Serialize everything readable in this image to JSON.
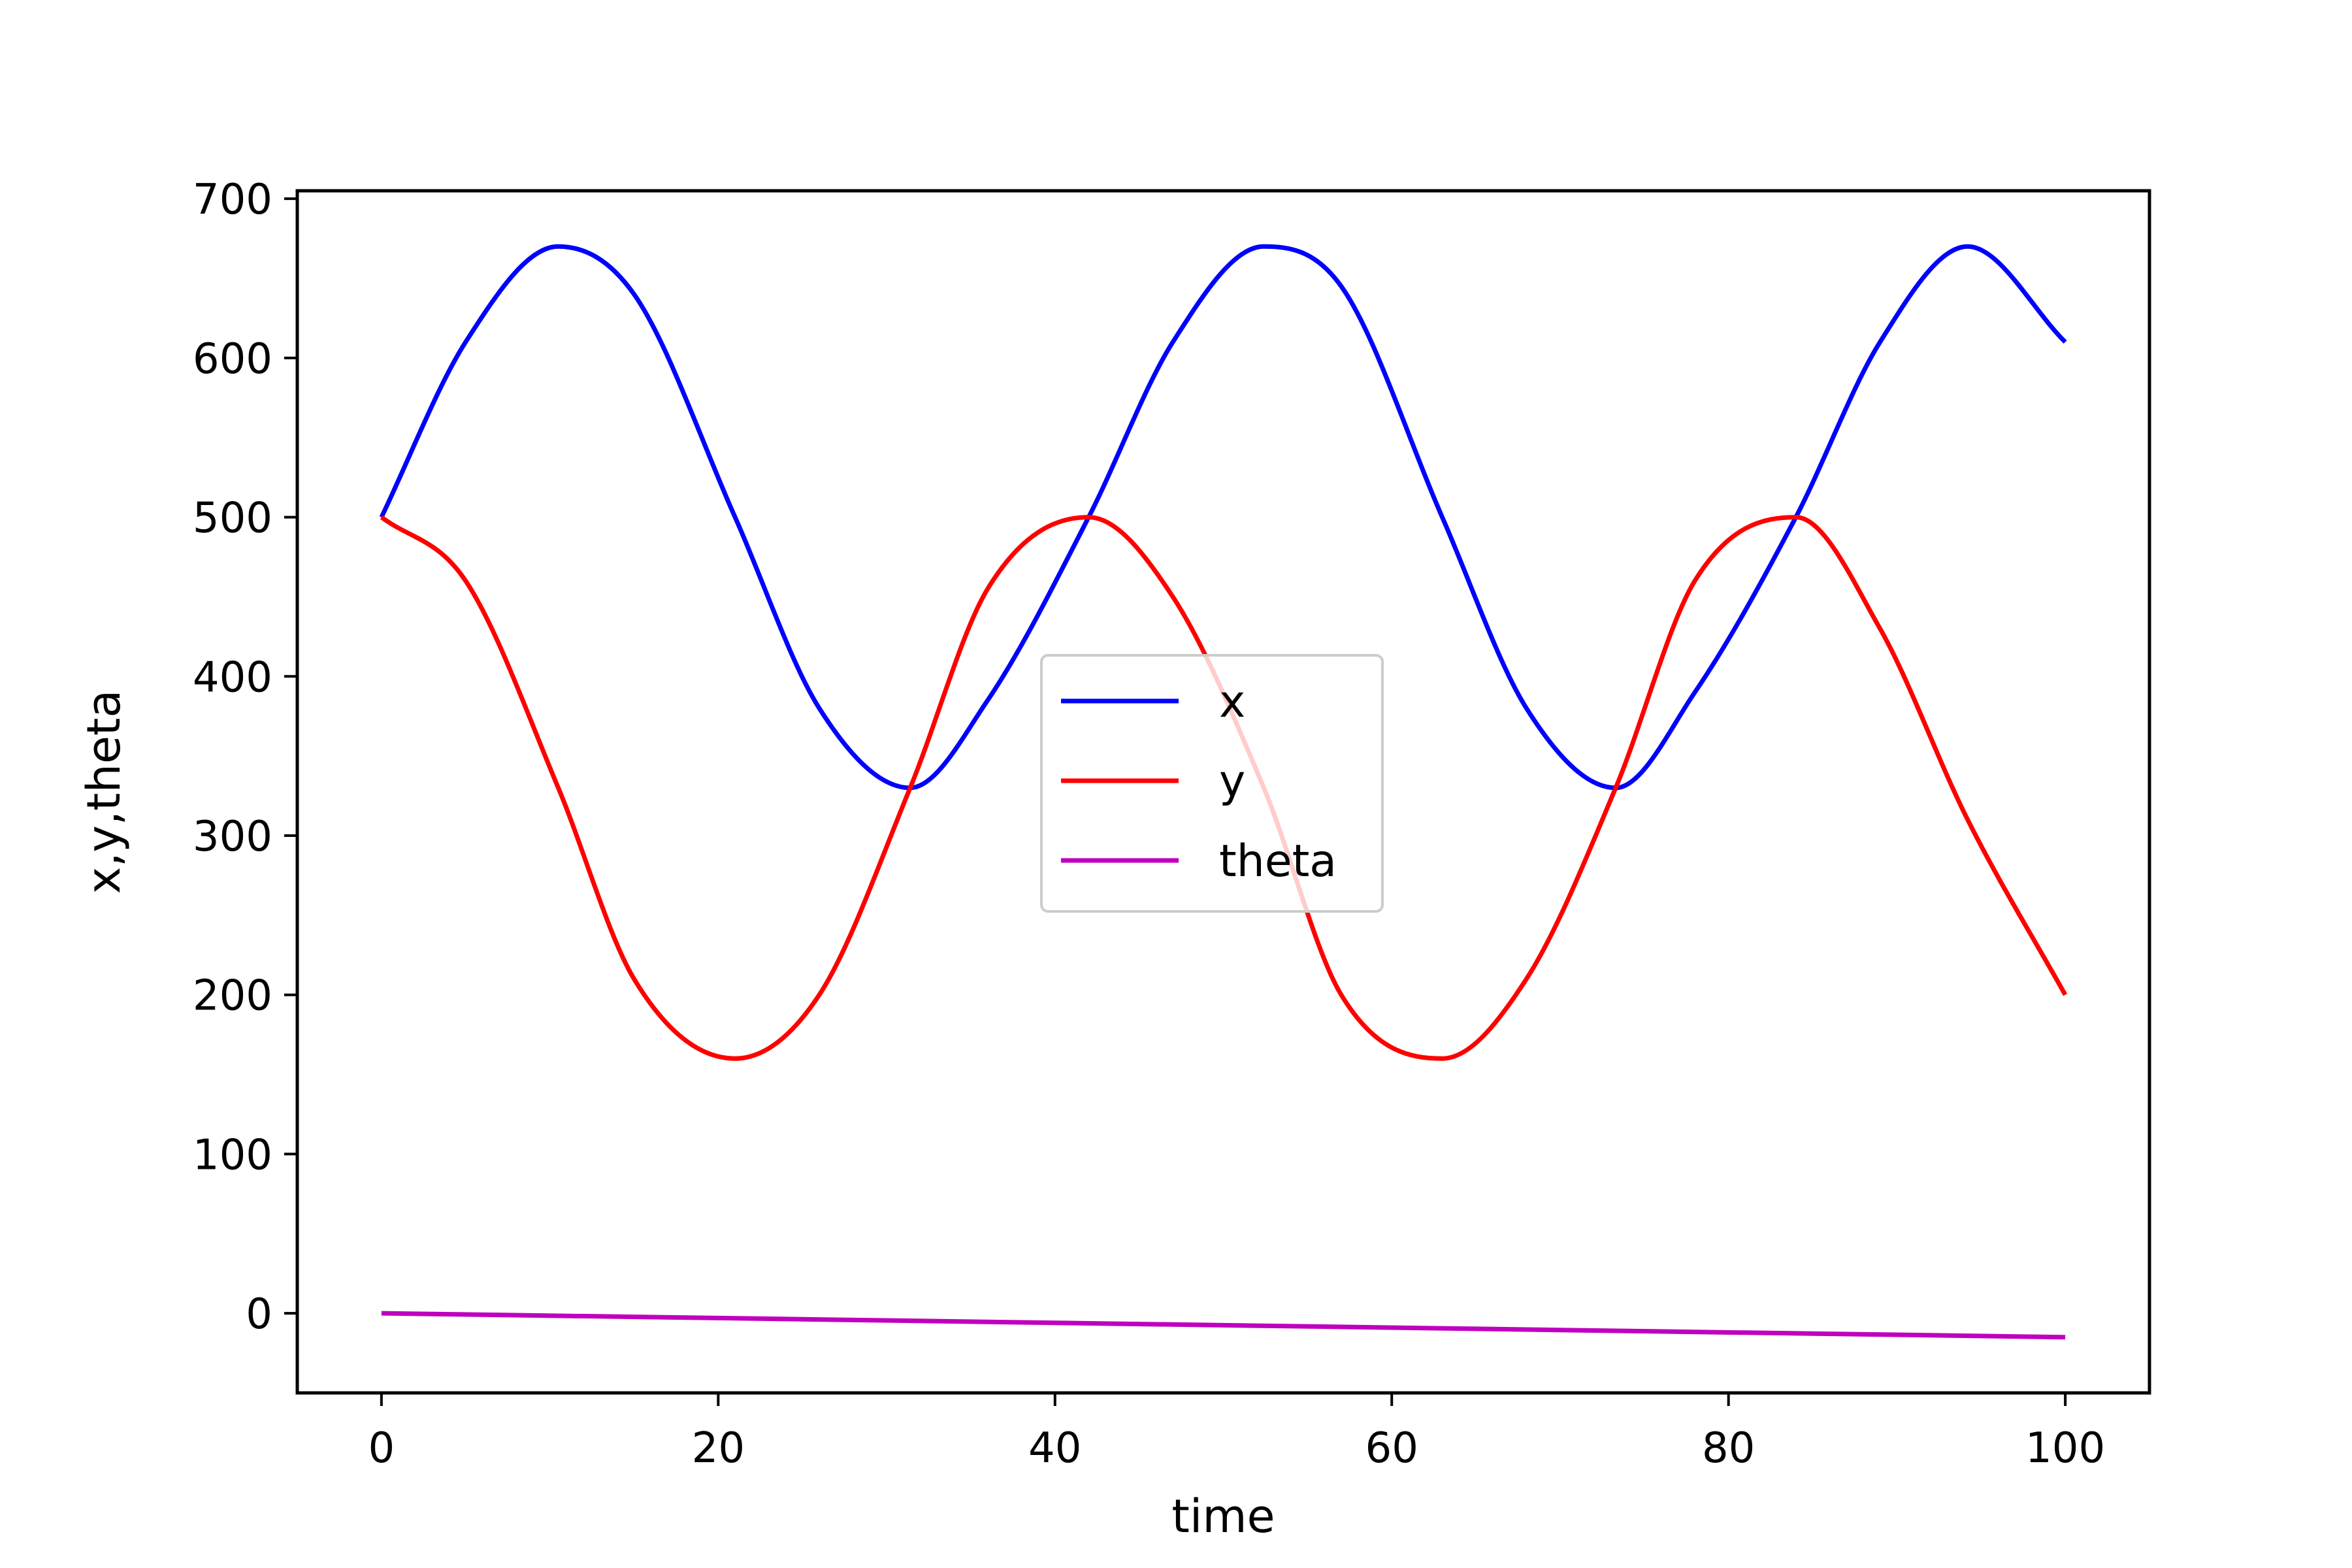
{
  "chart_data": {
    "type": "line",
    "title": "",
    "xlabel": "time",
    "ylabel": "x,y,theta",
    "xlim": [
      -5,
      105
    ],
    "ylim": [
      -50,
      705
    ],
    "xticks": [
      0,
      20,
      40,
      60,
      80,
      100
    ],
    "yticks": [
      0,
      100,
      200,
      300,
      400,
      500,
      600,
      700
    ],
    "grid": false,
    "legend_position": "center",
    "series": [
      {
        "name": "x",
        "color": "#0000ff",
        "x": [
          0,
          5,
          10.5,
          15,
          21,
          26,
          31.4,
          36,
          42,
          47,
          52.4,
          57,
          63,
          68,
          73.3,
          78,
          84,
          89,
          94.2,
          100
        ],
        "y": [
          500,
          610,
          670,
          640,
          500,
          380,
          330,
          385,
          500,
          610,
          670,
          645,
          500,
          380,
          330,
          390,
          500,
          610,
          670,
          610
        ]
      },
      {
        "name": "y",
        "color": "#ff0000",
        "x": [
          0,
          5,
          10.5,
          15,
          21,
          26,
          31.4,
          36,
          42,
          47,
          52.4,
          57,
          63,
          68,
          73.3,
          78,
          84,
          89,
          94.2,
          100
        ],
        "y": [
          500,
          460,
          330,
          210,
          160,
          200,
          330,
          455,
          500,
          450,
          330,
          200,
          160,
          210,
          330,
          460,
          500,
          430,
          310,
          200
        ]
      },
      {
        "name": "theta",
        "color": "#bf00bf",
        "x": [
          0,
          100
        ],
        "y": [
          0,
          -15
        ]
      }
    ]
  }
}
